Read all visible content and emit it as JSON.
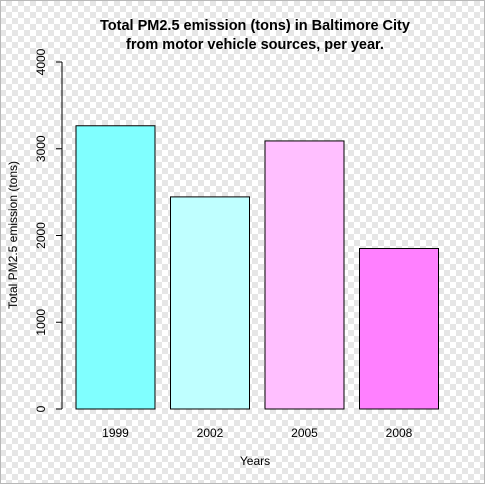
{
  "chart_data": {
    "type": "bar",
    "title_lines": [
      "Total PM2.5 emission (tons) in Baltimore City",
      "from motor vehicle sources, per year."
    ],
    "xlabel": "Years",
    "ylabel": "Total PM2.5 emission (tons)",
    "categories": [
      "1999",
      "2002",
      "2005",
      "2008"
    ],
    "values": [
      3265,
      2445,
      3090,
      1850
    ],
    "colors": [
      "#80FFFF",
      "#BFFFFF",
      "#FFBFFF",
      "#FF80FF"
    ],
    "ylim": [
      0,
      4000
    ],
    "yticks": [
      0,
      1000,
      2000,
      3000,
      4000
    ],
    "grid": false,
    "legend": "none"
  }
}
